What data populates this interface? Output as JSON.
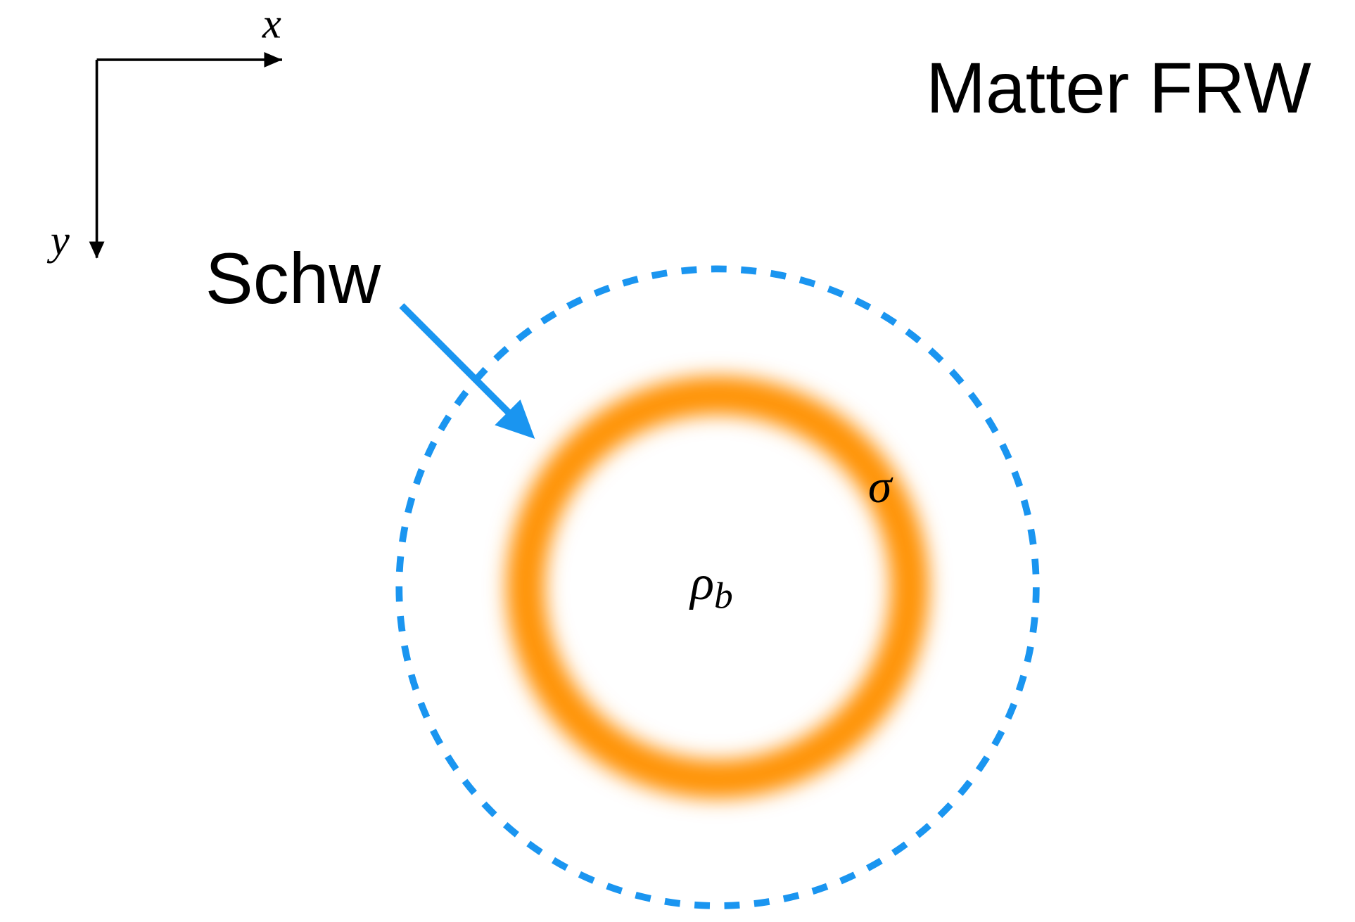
{
  "labels": {
    "title": "Matter FRW",
    "schw": "Schw",
    "x_axis": "x",
    "y_axis": "y",
    "sigma": "σ",
    "rho": "ρ",
    "rho_sub": "b"
  }
}
